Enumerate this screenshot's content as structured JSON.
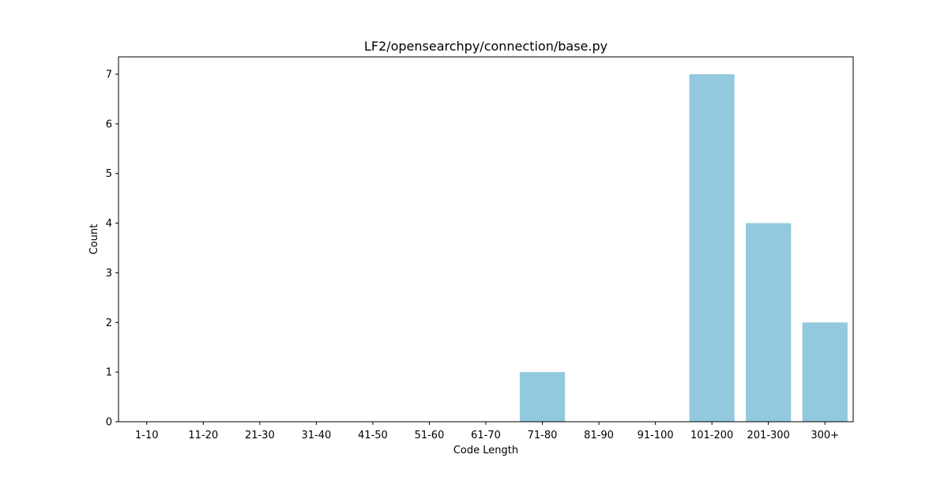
{
  "chart_data": {
    "type": "bar",
    "title": "LF2/opensearchpy/connection/base.py",
    "xlabel": "Code Length",
    "ylabel": "Count",
    "categories": [
      "1-10",
      "11-20",
      "21-30",
      "31-40",
      "41-50",
      "51-60",
      "61-70",
      "71-80",
      "81-90",
      "91-100",
      "101-200",
      "201-300",
      "300+"
    ],
    "values": [
      0,
      0,
      0,
      0,
      0,
      0,
      0,
      1,
      0,
      0,
      7,
      4,
      2
    ],
    "ylim": [
      0,
      7.35
    ],
    "yticks": [
      0,
      1,
      2,
      3,
      4,
      5,
      6,
      7
    ],
    "bar_color": "#92c9de",
    "grid": false,
    "legend": "none"
  }
}
